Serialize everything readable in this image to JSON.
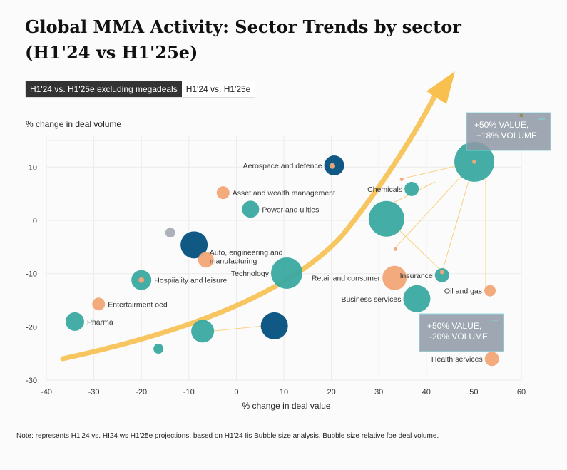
{
  "title": "Global MMA Activity: Sector Trends by sector (H1'24 vs H1'25e)",
  "tabs": [
    {
      "label": "H1'24 vs. H1'25e excluding megadeals",
      "active": true
    },
    {
      "label": "H1'24 vs. H1'25e",
      "active": false
    }
  ],
  "note": "Note: represents H1'24 vs. HI24 ws H1'25e projections, based on H1'24 Iis Bubble size analysis, Bubble size relative foe deal volume.",
  "colors": {
    "teal": "#3aa9a0",
    "navy": "#03507e",
    "orange": "#f2a777",
    "gray": "#a9adb5",
    "arrow": "#f7c04f",
    "annotation_bg": "#8f9aa6",
    "annotation_border": "#7fd9df"
  },
  "chart_data": {
    "type": "scatter",
    "title": "Global MMA Activity: Sector Trends by sector (H1'24 vs H1'25e)",
    "xlabel": "% change in deal value",
    "ylabel": "% change in deal volume",
    "xlim": [
      -40,
      60
    ],
    "ylim": [
      -30,
      15
    ],
    "xticks": [
      -40,
      -30,
      -20,
      -10,
      0,
      10,
      20,
      30,
      40,
      50,
      60
    ],
    "yticks": [
      10,
      0,
      -10,
      -20,
      -30
    ],
    "grid": true,
    "points": [
      {
        "label": "Aerospace and defence",
        "x": 20.6,
        "y": 10.3,
        "size": 14,
        "color": "navy"
      },
      {
        "label": "",
        "x": 20.2,
        "y": 10.2,
        "size": 4,
        "color": "orange"
      },
      {
        "label": "Asset and wealth management",
        "x": -2.8,
        "y": 5.2,
        "size": 9,
        "color": "orange"
      },
      {
        "label": "Power and ulities",
        "x": 3.0,
        "y": 2.1,
        "size": 12,
        "color": "teal"
      },
      {
        "label": "",
        "x": -13.9,
        "y": -2.3,
        "size": 7,
        "color": "gray"
      },
      {
        "label": "",
        "x": -8.9,
        "y": -4.6,
        "size": 19,
        "color": "navy"
      },
      {
        "label": "Auto, engineering and manufacturing",
        "x": -6.4,
        "y": -7.4,
        "size": 11,
        "color": "orange"
      },
      {
        "label": "Technology",
        "x": 10.6,
        "y": -9.9,
        "size": 22,
        "color": "teal"
      },
      {
        "label": "Hospiiality and leisure",
        "x": -20.0,
        "y": -11.2,
        "size": 14,
        "color": "teal"
      },
      {
        "label": "",
        "x": -20.0,
        "y": -11.2,
        "size": 4,
        "color": "orange"
      },
      {
        "label": "Entertairment oed",
        "x": -29.0,
        "y": -15.7,
        "size": 9,
        "color": "orange"
      },
      {
        "label": "Pharma",
        "x": -34.0,
        "y": -19.0,
        "size": 13,
        "color": "teal"
      },
      {
        "label": "",
        "x": -7.1,
        "y": -20.8,
        "size": 16,
        "color": "teal"
      },
      {
        "label": "",
        "x": 8.0,
        "y": -19.8,
        "size": 19,
        "color": "navy"
      },
      {
        "label": "",
        "x": -16.4,
        "y": -24.1,
        "size": 7,
        "color": "teal"
      },
      {
        "label": "",
        "x": 50.1,
        "y": 11.0,
        "size": 28,
        "color": "teal"
      },
      {
        "label": "",
        "x": 50.1,
        "y": 11.0,
        "size": 3,
        "color": "orange"
      },
      {
        "label": "Chemicals",
        "x": 36.9,
        "y": 5.9,
        "size": 10,
        "color": "teal"
      },
      {
        "label": "",
        "x": 31.6,
        "y": 0.3,
        "size": 25,
        "color": "teal"
      },
      {
        "label": "Retail and consumer",
        "x": 33.3,
        "y": -10.8,
        "size": 17,
        "color": "orange"
      },
      {
        "label": "Insurance",
        "x": 43.3,
        "y": -10.3,
        "size": 10,
        "color": "teal"
      },
      {
        "label": "",
        "x": 43.3,
        "y": -9.7,
        "size": 3,
        "color": "orange"
      },
      {
        "label": "Business services",
        "x": 38.0,
        "y": -14.7,
        "size": 19,
        "color": "teal"
      },
      {
        "label": "Oil and gas",
        "x": 53.4,
        "y": -13.2,
        "size": 8,
        "color": "orange"
      },
      {
        "label": "Health services",
        "x": 53.8,
        "y": -26.0,
        "size": 10,
        "color": "orange"
      },
      {
        "label": "",
        "x": 34.8,
        "y": 7.7,
        "size": 2.5,
        "color": "orange"
      },
      {
        "label": "",
        "x": 33.5,
        "y": -5.4,
        "size": 2.5,
        "color": "orange"
      }
    ],
    "annotations": [
      {
        "text": [
          "+50% VALUE,",
          "+18% VOLUME"
        ]
      },
      {
        "text": [
          "+50% VALUE,",
          "-20% VOLUME"
        ]
      }
    ]
  }
}
